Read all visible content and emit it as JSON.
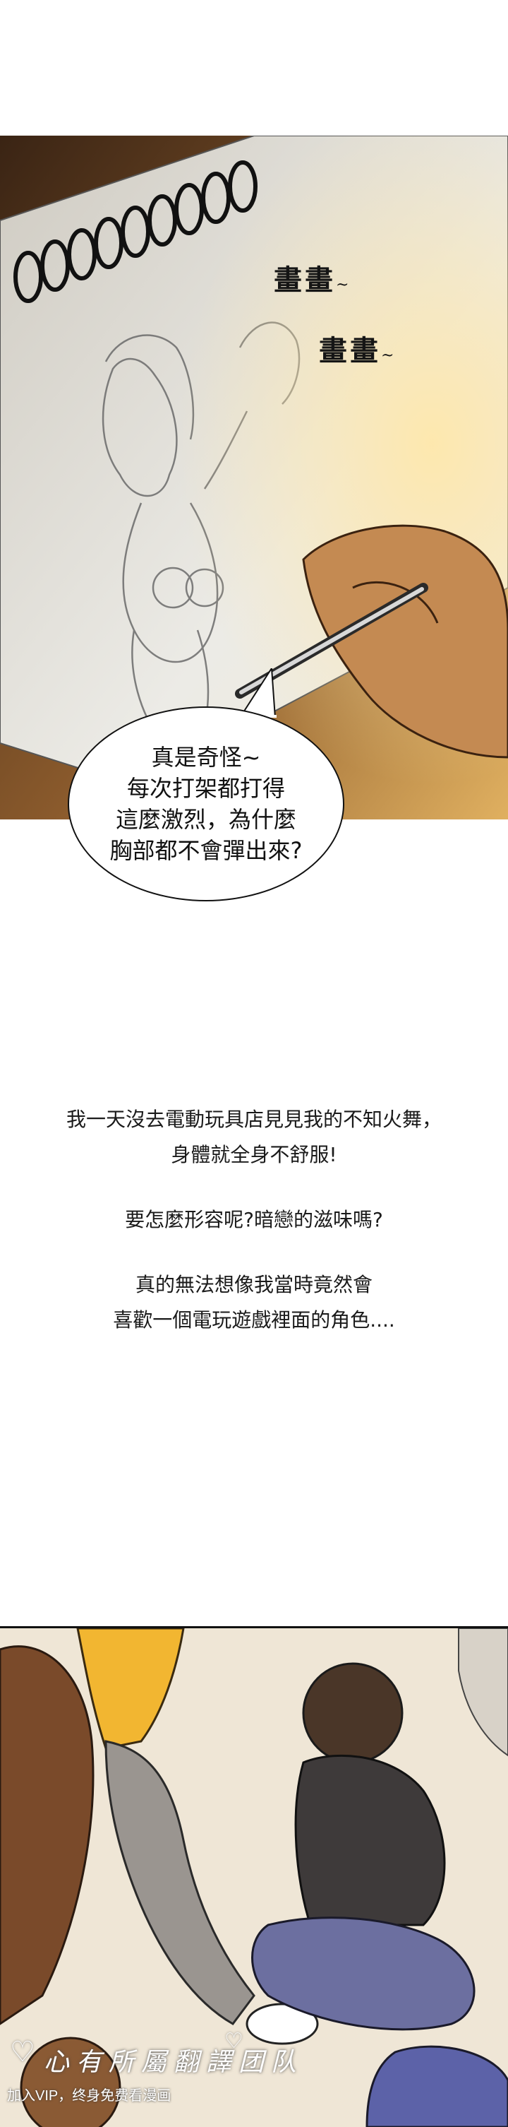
{
  "panel_sketch": {
    "sfx": [
      "畫畫",
      "畫畫"
    ],
    "sfx_tail": "~",
    "speech": "真是奇怪~\n每次打架都打得\n這麼激烈，為什麼\n胸部都不會彈出來?"
  },
  "narration": {
    "block1": [
      "我一天沒去電動玩具店見見我的不知火舞，",
      "身體就全身不舒服!"
    ],
    "block2": [
      "要怎麼形容呢?暗戀的滋味嗎?"
    ],
    "block3": [
      "真的無法想像我當時竟然會",
      "喜歡一個電玩遊戲裡面的角色...."
    ]
  },
  "watermark": {
    "title": "心有所屬翻譯团队",
    "subtitle": "加入VIP，终身免费看漫画"
  },
  "colors": {
    "paper": "#e9e6de",
    "desk_brown": "#5a3a22",
    "sunlight": "#d9a54a",
    "ink": "#111111"
  },
  "icons": [
    "heart-icon",
    "heart-icon"
  ]
}
